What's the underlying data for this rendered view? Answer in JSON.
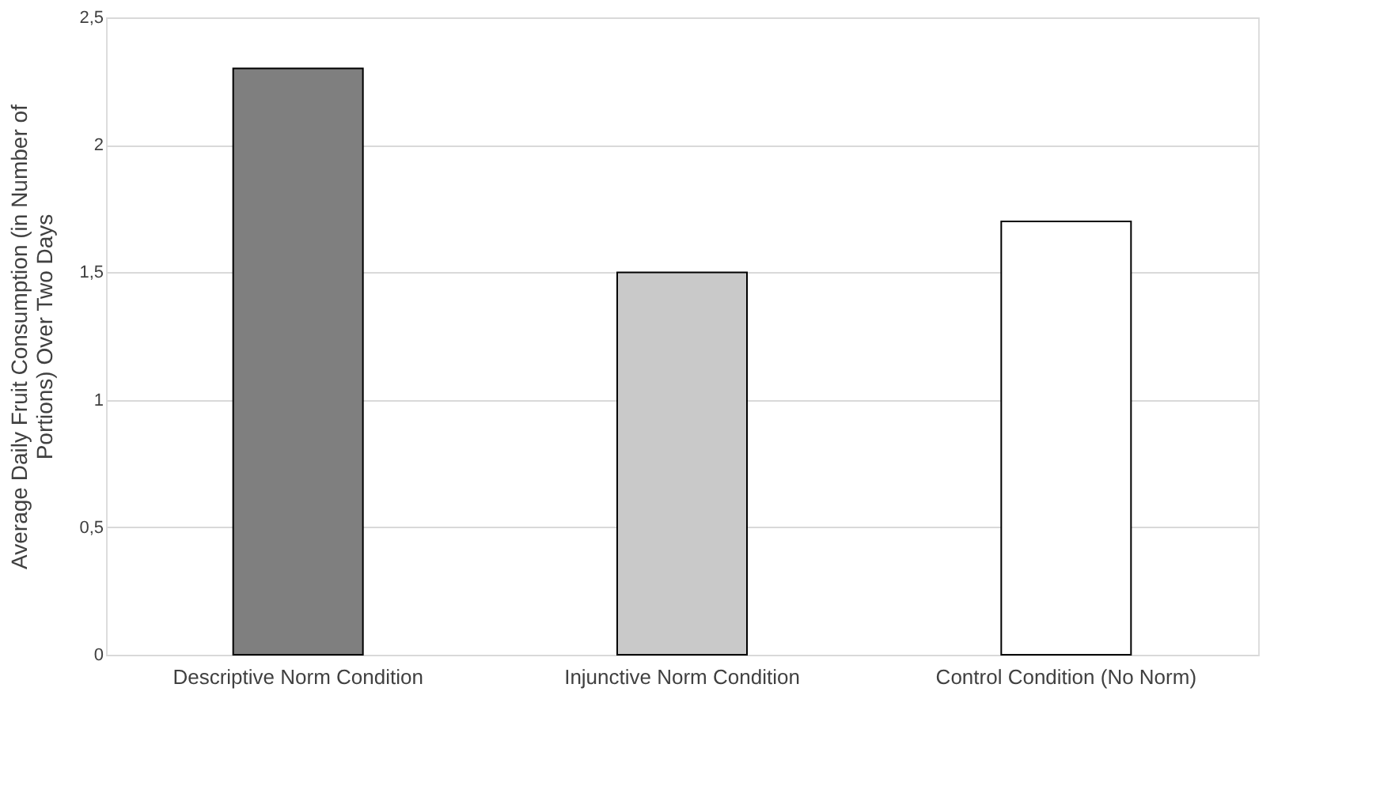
{
  "chart_data": {
    "type": "bar",
    "ylabel": "Average Daily Fruit Consumption (in Number of\nPortions) Over Two Days",
    "categories": [
      "Descriptive Norm Condition",
      "Injunctive Norm Condition",
      "Control Condition (No Norm)"
    ],
    "values": [
      2.3,
      1.5,
      1.7
    ],
    "colors": [
      "#7f7f7f",
      "#c9c9c9",
      "#ffffff"
    ],
    "ylim": [
      0,
      2.5
    ],
    "yticks": [
      0,
      {
        "value": 0.5,
        "label": "0,5"
      },
      1,
      {
        "value": 1.5,
        "label": "1,5"
      },
      2,
      {
        "value": 2.5,
        "label": "2,5"
      }
    ],
    "grid": "y"
  }
}
